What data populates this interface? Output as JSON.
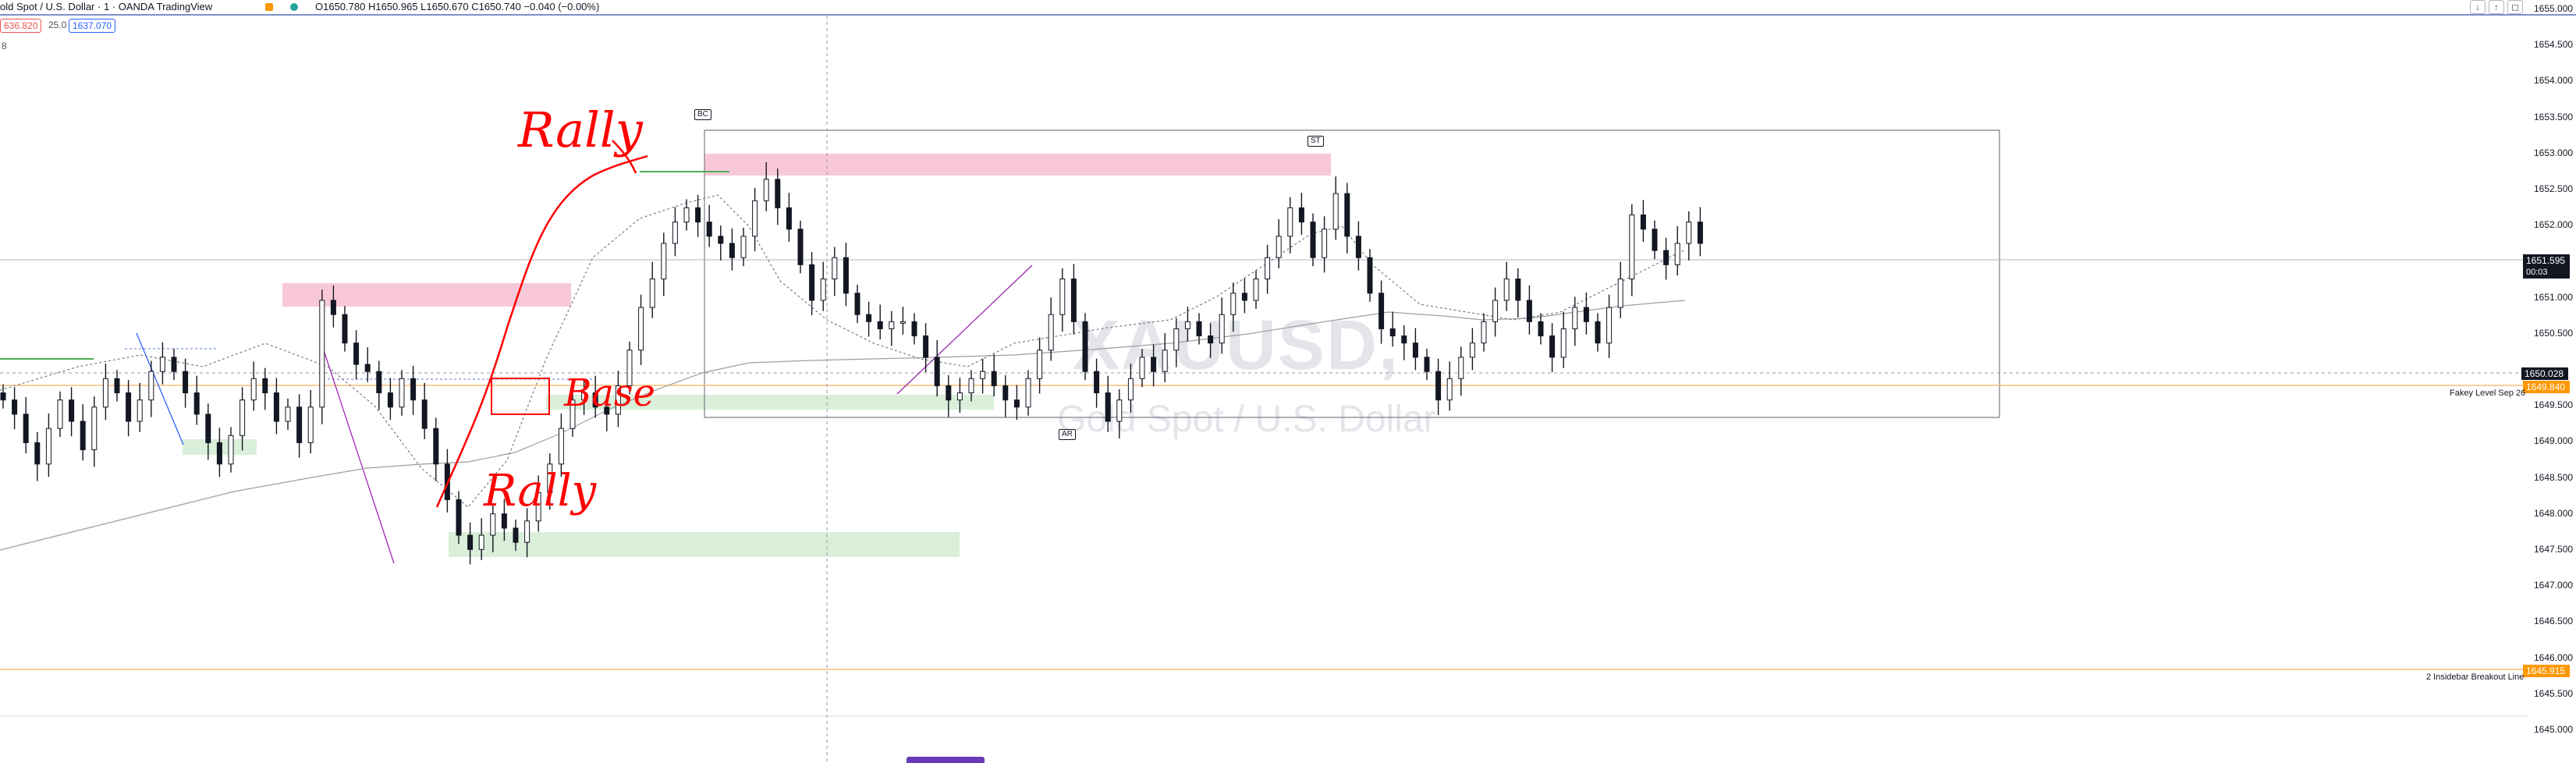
{
  "header": {
    "symbol_title": "old Spot / U.S. Dollar · 1 · OANDA  TradingView",
    "ohlc": "O1650.780  H1650.965  L1650.670  C1650.740  −0.040 (−0.00%)",
    "sell_price": "636.820",
    "spread": "25.0",
    "buy_price": "1637.070",
    "row3": "8"
  },
  "window_controls": [
    "↓",
    "↑",
    "◻"
  ],
  "price_axis": {
    "labels": [
      "1655.000",
      "1654.500",
      "1654.000",
      "1653.500",
      "1653.000",
      "1652.500",
      "1652.000",
      "1651.000",
      "1650.500",
      "1649.500",
      "1649.000",
      "1648.500",
      "1648.000",
      "1647.500",
      "1647.000",
      "1646.500",
      "1646.000",
      "1645.500",
      "1645.000"
    ],
    "last_price": "1651.595",
    "countdown": "00:03",
    "crosshair_price": "1650.028",
    "fakey_price": "1649.840",
    "inside_price": "1645.915"
  },
  "levels": {
    "fakey_label": "Fakey Level Sep 26",
    "inside_label": "2 Insidebar Breakout Line"
  },
  "watermark": {
    "symbol": "XAUUSD,",
    "name": "Gold Spot / U.S. Dollar"
  },
  "markers": {
    "bc": "BC",
    "st": "ST",
    "ar": "AR"
  },
  "annotations": {
    "rally_top": "Rally",
    "base": "Base",
    "rally_bottom": "Rally"
  },
  "colors": {
    "supply_zone": "#f8c8d8",
    "demand_zone": "#d9efd9",
    "annotation": "#ff0000",
    "fakey_line": "#ff9800",
    "header_border": "#7b92c9"
  },
  "chart_data": {
    "type": "candlestick",
    "ylim": [
      1644.8,
      1655.3
    ],
    "closes": [
      1649.9,
      1649.7,
      1649.3,
      1649.0,
      1649.5,
      1649.9,
      1649.6,
      1649.2,
      1649.8,
      1650.2,
      1650.0,
      1649.6,
      1649.9,
      1650.3,
      1650.5,
      1650.3,
      1650.0,
      1649.7,
      1649.3,
      1649.0,
      1649.4,
      1649.9,
      1650.2,
      1650.0,
      1649.6,
      1649.8,
      1649.3,
      1649.8,
      1651.3,
      1651.1,
      1650.7,
      1650.4,
      1650.3,
      1650.0,
      1649.8,
      1650.2,
      1649.9,
      1649.5,
      1649.0,
      1648.5,
      1648.0,
      1647.8,
      1648.0,
      1648.3,
      1648.1,
      1647.9,
      1648.2,
      1648.6,
      1649.0,
      1649.5,
      1649.9,
      1650.0,
      1649.8,
      1649.7,
      1650.1,
      1650.6,
      1651.2,
      1651.6,
      1652.1,
      1652.4,
      1652.6,
      1652.4,
      1652.2,
      1652.1,
      1651.9,
      1652.2,
      1652.7,
      1653.0,
      1652.6,
      1652.3,
      1651.8,
      1651.3,
      1651.6,
      1651.9,
      1651.4,
      1651.1,
      1651.0,
      1650.9,
      1651.0,
      1651.0,
      1650.8,
      1650.5,
      1650.1,
      1649.9,
      1650.0,
      1650.2,
      1650.3,
      1650.1,
      1649.9,
      1649.8,
      1650.2,
      1650.6,
      1651.1,
      1651.6,
      1651.0,
      1650.3,
      1650.0,
      1649.6,
      1649.9,
      1650.2,
      1650.5,
      1650.3,
      1650.6,
      1650.9,
      1651.0,
      1650.8,
      1650.7,
      1651.1,
      1651.4,
      1651.3,
      1651.6,
      1651.9,
      1652.2,
      1652.6,
      1652.4,
      1651.9,
      1652.3,
      1652.8,
      1652.2,
      1651.9,
      1651.4,
      1650.9,
      1650.8,
      1650.7,
      1650.5,
      1650.3,
      1649.9,
      1650.2,
      1650.5,
      1650.7,
      1651.0,
      1651.3,
      1651.6,
      1651.3,
      1651.0,
      1650.8,
      1650.5,
      1650.9,
      1651.2,
      1651.0,
      1650.7,
      1651.2,
      1651.6,
      1652.5,
      1652.3,
      1652.0,
      1651.8,
      1652.1,
      1652.4,
      1652.1
    ]
  }
}
